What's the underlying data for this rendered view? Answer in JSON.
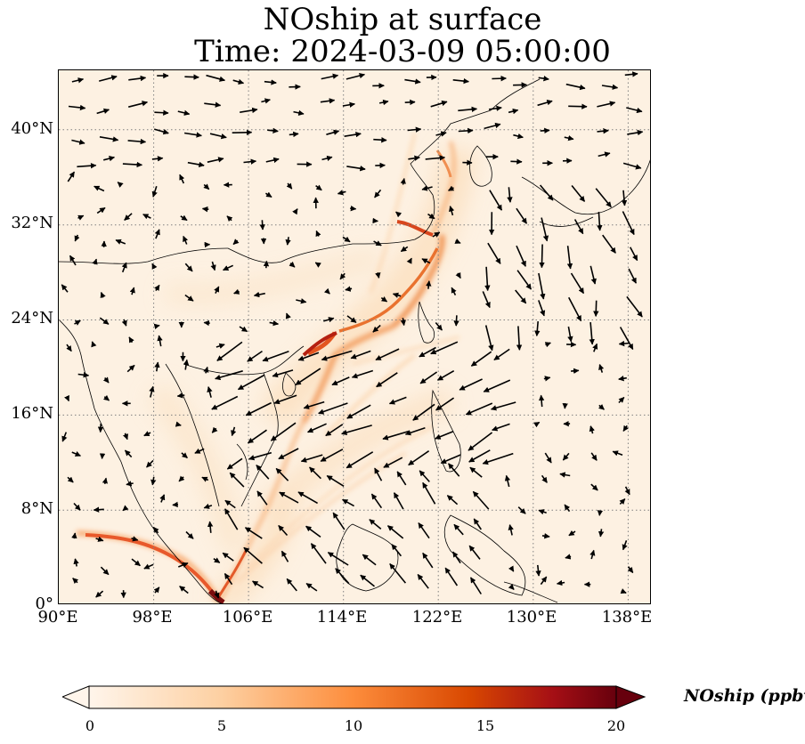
{
  "title": {
    "line1": "NOship at surface",
    "line2": "Time: 2024-03-09 05:00:00"
  },
  "map": {
    "extent_lon": [
      90,
      140
    ],
    "extent_lat": [
      0,
      45
    ],
    "gridlines": "dotted grey",
    "x_ticks": [
      "90°E",
      "98°E",
      "106°E",
      "114°E",
      "122°E",
      "130°E",
      "138°E"
    ],
    "y_ticks": [
      "0°",
      "8°N",
      "16°N",
      "24°N",
      "32°N",
      "40°N"
    ],
    "field": "NOship",
    "colormap": "white-orange-red-darkred",
    "wind_vectors": "black arrows"
  },
  "colorbar": {
    "label": "NOship (ppbv)",
    "ticks": [
      "0",
      "5",
      "10",
      "15",
      "20"
    ],
    "range": [
      0,
      20
    ],
    "extend": "both",
    "colors": [
      "#fff5eb",
      "#fdd0a2",
      "#fd8d3c",
      "#d94801",
      "#a50f15",
      "#67000d"
    ]
  }
}
